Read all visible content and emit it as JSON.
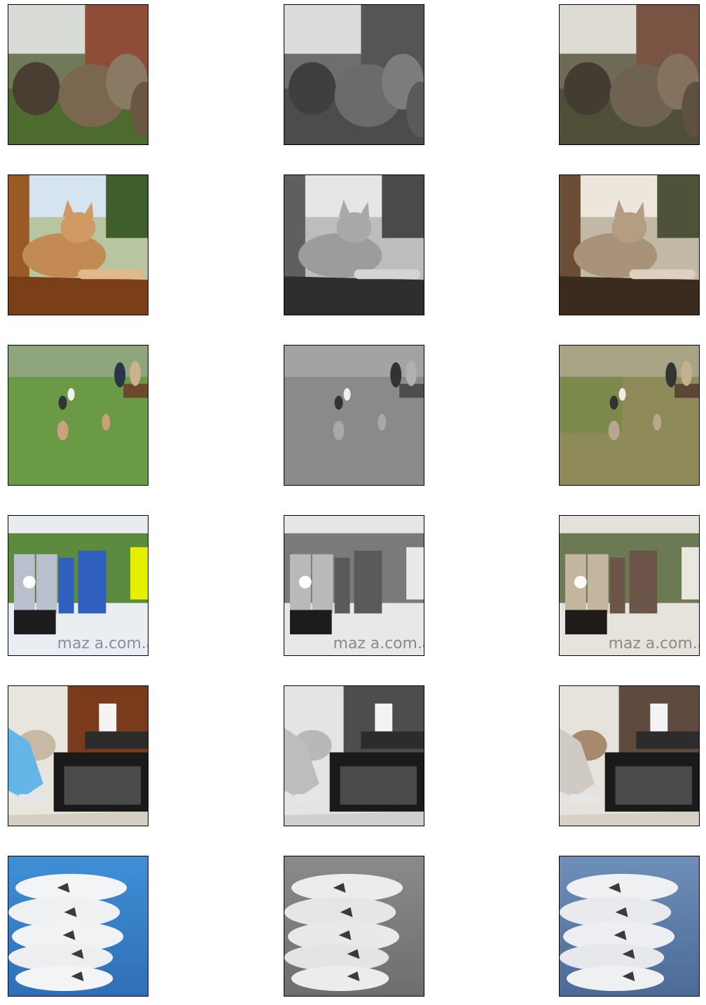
{
  "grid": {
    "columns": [
      "original",
      "grayscale",
      "colorized"
    ],
    "rows": [
      {
        "subject": "sheep in front of brick wall"
      },
      {
        "subject": "cat on windowsill"
      },
      {
        "subject": "dogs running on grass with people seated"
      },
      {
        "subject": "soccer players holding ball"
      },
      {
        "subject": "person taking food from oven"
      },
      {
        "subject": "aerobatic jets with smoke trails"
      }
    ]
  }
}
